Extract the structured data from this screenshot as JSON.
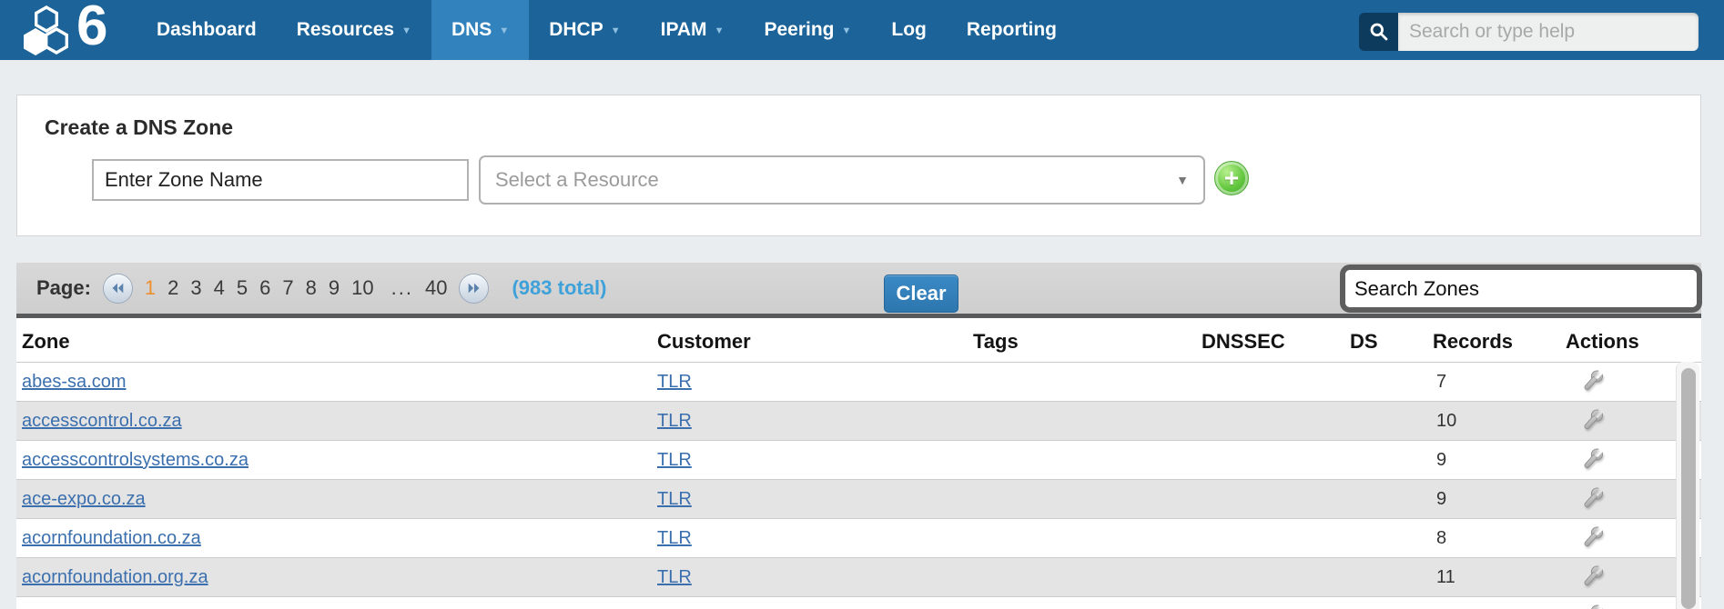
{
  "nav": {
    "brand": "6",
    "items": [
      {
        "label": "Dashboard",
        "caret": false,
        "active": false
      },
      {
        "label": "Resources",
        "caret": true,
        "active": false
      },
      {
        "label": "DNS",
        "caret": true,
        "active": true
      },
      {
        "label": "DHCP",
        "caret": true,
        "active": false
      },
      {
        "label": "IPAM",
        "caret": true,
        "active": false
      },
      {
        "label": "Peering",
        "caret": true,
        "active": false
      },
      {
        "label": "Log",
        "caret": false,
        "active": false
      },
      {
        "label": "Reporting",
        "caret": false,
        "active": false
      }
    ],
    "search_placeholder": "Search or type help"
  },
  "create_zone": {
    "title": "Create a DNS Zone",
    "zone_name_value": "Enter Zone Name",
    "resource_placeholder": "Select a Resource"
  },
  "pagination": {
    "label": "Page:",
    "pages": [
      "1",
      "2",
      "3",
      "4",
      "5",
      "6",
      "7",
      "8",
      "9",
      "10"
    ],
    "current_page": "1",
    "ellipsis": "...",
    "last_page": "40",
    "total": "(983 total)",
    "clear_button": "Clear",
    "search_value": "Search Zones"
  },
  "table": {
    "columns": [
      "Zone",
      "Customer",
      "Tags",
      "DNSSEC",
      "DS",
      "Records",
      "Actions"
    ],
    "rows": [
      {
        "zone": "abes-sa.com",
        "customer": "TLR",
        "tags": "",
        "dnssec": "",
        "ds": "",
        "records": "7"
      },
      {
        "zone": "accesscontrol.co.za",
        "customer": "TLR",
        "tags": "",
        "dnssec": "",
        "ds": "",
        "records": "10"
      },
      {
        "zone": "accesscontrolsystems.co.za",
        "customer": "TLR",
        "tags": "",
        "dnssec": "",
        "ds": "",
        "records": "9"
      },
      {
        "zone": "ace-expo.co.za",
        "customer": "TLR",
        "tags": "",
        "dnssec": "",
        "ds": "",
        "records": "9"
      },
      {
        "zone": "acornfoundation.co.za",
        "customer": "TLR",
        "tags": "",
        "dnssec": "",
        "ds": "",
        "records": "8"
      },
      {
        "zone": "acornfoundation.org.za",
        "customer": "TLR",
        "tags": "",
        "dnssec": "",
        "ds": "",
        "records": "11"
      }
    ],
    "cutoff_row_visible": true
  },
  "icons": {
    "logo": "hexagon-cluster-logo",
    "nav_search": "magnifier-icon",
    "nav_dropdown": "chevron-down-icon",
    "add": "plus-circle-icon",
    "first_page": "double-chevron-left-icon",
    "next_page": "double-chevron-right-icon",
    "row_action": "wrench-icon"
  },
  "colors": {
    "nav_bg": "#1b6398",
    "nav_active_bg": "#3182bd",
    "nav_search_box": "#0d3b5e",
    "page_bg": "#e9edf0",
    "link_blue": "#3b6fae",
    "current_page_orange": "#ee8f30",
    "total_blue": "#3fa1da",
    "clear_button_blue": "#2d76ae",
    "add_green": "#3ca227",
    "row_alt_gray": "#e4e4e4",
    "pager_bar_gray": "#d3d3d3",
    "pager_border_dark": "#58595b"
  }
}
